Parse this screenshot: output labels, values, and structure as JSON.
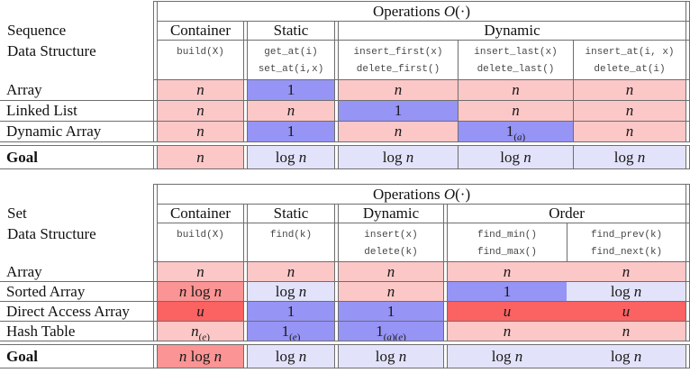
{
  "colors": {
    "pink": "#fbc7c7",
    "medium_pink": "#fb9494",
    "red": "#fb6262",
    "blue": "#9694f4",
    "lavender": "#e2e2fa",
    "rule": "#6e6e6e",
    "mono_text": "#474747"
  },
  "operations_title": {
    "prefix": "Operations",
    "big_o": "O",
    "args": "(·)"
  },
  "tables": [
    {
      "name": "sequence",
      "label_lines": [
        "Sequence",
        "Data Structure"
      ],
      "groups": [
        {
          "label": "Container",
          "span": 1
        },
        {
          "label": "Static",
          "span": 1
        },
        {
          "label": "Dynamic",
          "span": 3
        }
      ],
      "op_columns": [
        [
          "build(X)"
        ],
        [
          "get_at(i)",
          "set_at(i,x)"
        ],
        [
          "insert_first(x)",
          "delete_first()"
        ],
        [
          "insert_last(x)",
          "delete_last()"
        ],
        [
          "insert_at(i, x)",
          "delete_at(i)"
        ]
      ],
      "rows": [
        {
          "label": "Array",
          "cells": [
            {
              "v": "n",
              "c": "pink"
            },
            {
              "v": "1",
              "c": "blue"
            },
            {
              "v": "n",
              "c": "pink"
            },
            {
              "v": "n",
              "c": "pink"
            },
            {
              "v": "n",
              "c": "pink"
            }
          ]
        },
        {
          "label": "Linked List",
          "cells": [
            {
              "v": "n",
              "c": "pink"
            },
            {
              "v": "n",
              "c": "pink"
            },
            {
              "v": "1",
              "c": "blue"
            },
            {
              "v": "n",
              "c": "pink"
            },
            {
              "v": "n",
              "c": "pink"
            }
          ]
        },
        {
          "label": "Dynamic Array",
          "cells": [
            {
              "v": "n",
              "c": "pink"
            },
            {
              "v": "1",
              "c": "blue"
            },
            {
              "v": "n",
              "c": "pink"
            },
            {
              "v": "1_(a)",
              "c": "blue"
            },
            {
              "v": "n",
              "c": "pink"
            }
          ]
        }
      ],
      "goal": {
        "label": "Goal",
        "cells": [
          {
            "v": "n",
            "c": "pink"
          },
          {
            "v": "log n",
            "c": "lavender"
          },
          {
            "v": "log n",
            "c": "lavender"
          },
          {
            "v": "log n",
            "c": "lavender"
          },
          {
            "v": "log n",
            "c": "lavender"
          }
        ]
      }
    },
    {
      "name": "set",
      "label_lines": [
        "Set",
        "Data Structure"
      ],
      "groups": [
        {
          "label": "Container",
          "span": 1
        },
        {
          "label": "Static",
          "span": 1
        },
        {
          "label": "Dynamic",
          "span": 1
        },
        {
          "label": "Order",
          "span": 2
        }
      ],
      "op_columns": [
        [
          "build(X)"
        ],
        [
          "find(k)"
        ],
        [
          "insert(x)",
          "delete(k)"
        ],
        [
          "find_min()",
          "find_max()"
        ],
        [
          "find_prev(k)",
          "find_next(k)"
        ]
      ],
      "rows": [
        {
          "label": "Array",
          "cells": [
            {
              "v": "n",
              "c": "pink"
            },
            {
              "v": "n",
              "c": "pink"
            },
            {
              "v": "n",
              "c": "pink"
            },
            {
              "v": "n",
              "c": "pink"
            },
            {
              "v": "n",
              "c": "pink"
            }
          ]
        },
        {
          "label": "Sorted Array",
          "cells": [
            {
              "v": "n log n",
              "c": "medium_pink"
            },
            {
              "v": "log n",
              "c": "lavender"
            },
            {
              "v": "n",
              "c": "pink"
            },
            {
              "v": "1",
              "c": "blue"
            },
            {
              "v": "log n",
              "c": "lavender"
            }
          ]
        },
        {
          "label": "Direct Access Array",
          "cells": [
            {
              "v": "u",
              "c": "red"
            },
            {
              "v": "1",
              "c": "blue"
            },
            {
              "v": "1",
              "c": "blue"
            },
            {
              "v": "u",
              "c": "red"
            },
            {
              "v": "u",
              "c": "red"
            }
          ]
        },
        {
          "label": "Hash Table",
          "cells": [
            {
              "v": "n_(e)",
              "c": "pink"
            },
            {
              "v": "1_(e)",
              "c": "blue"
            },
            {
              "v": "1_(a)(e)",
              "c": "blue"
            },
            {
              "v": "n",
              "c": "pink"
            },
            {
              "v": "n",
              "c": "pink"
            }
          ]
        }
      ],
      "goal": {
        "label": "Goal",
        "cells": [
          {
            "v": "n log n",
            "c": "medium_pink"
          },
          {
            "v": "log n",
            "c": "lavender"
          },
          {
            "v": "log n",
            "c": "lavender"
          },
          {
            "v": "log n",
            "c": "lavender"
          },
          {
            "v": "log n",
            "c": "lavender"
          }
        ]
      }
    }
  ]
}
